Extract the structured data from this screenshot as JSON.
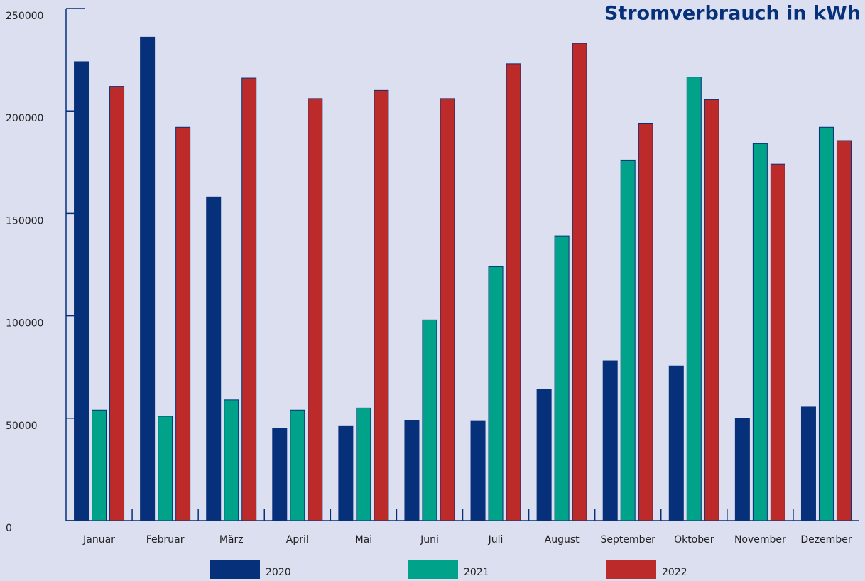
{
  "chart_data": {
    "type": "bar",
    "title": "Stromverbrauch in kWh",
    "categories": [
      "Januar",
      "Februar",
      "März",
      "April",
      "Mai",
      "Juni",
      "Juli",
      "August",
      "September",
      "Oktober",
      "November",
      "Dezember"
    ],
    "series": [
      {
        "name": "2020",
        "color": "#06317a",
        "values": [
          224000,
          236000,
          158000,
          45000,
          46000,
          49000,
          48500,
          64000,
          78000,
          75500,
          50000,
          55500
        ]
      },
      {
        "name": "2021",
        "color": "#00a38a",
        "values": [
          54000,
          51000,
          59000,
          54000,
          55000,
          98000,
          124000,
          139000,
          176000,
          216500,
          184000,
          192000
        ]
      },
      {
        "name": "2022",
        "color": "#bd2a2a",
        "values": [
          212000,
          192000,
          216000,
          206000,
          210000,
          206000,
          223000,
          233000,
          194000,
          205500,
          174000,
          185500
        ]
      }
    ],
    "ylim": [
      0,
      250000
    ],
    "yticks": [
      0,
      50000,
      100000,
      150000,
      200000,
      250000
    ],
    "legend": "bottom"
  }
}
